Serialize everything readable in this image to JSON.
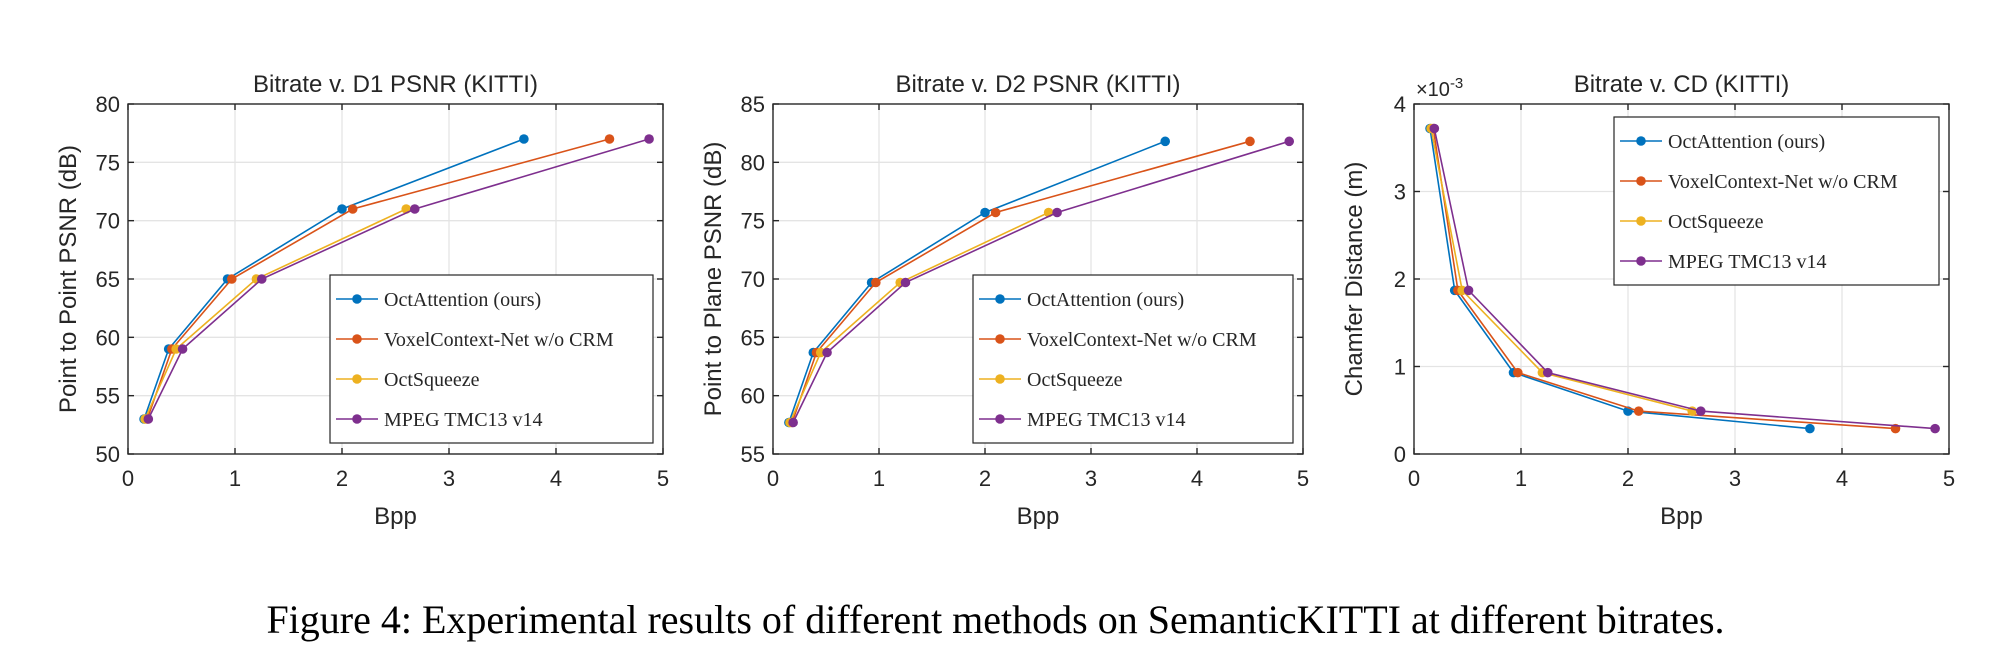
{
  "caption": "Figure 4: Experimental results of different methods on SemanticKITTI at different bitrates.",
  "series_colors": {
    "OctAttention (ours)": "#0072BD",
    "VoxelContext-Net w/o CRM": "#D95319",
    "OctSqueeze": "#EDB120",
    "MPEG TMC13 v14": "#7E2F8E"
  },
  "chart_data": [
    {
      "type": "line",
      "title": "Bitrate v. D1 PSNR (KITTI)",
      "xlabel": "Bpp",
      "ylabel": "Point to Point PSNR (dB)",
      "xlim": [
        0,
        5
      ],
      "ylim": [
        50,
        80
      ],
      "xticks": [
        "0",
        "1",
        "2",
        "3",
        "4",
        "5"
      ],
      "yticks": [
        "50",
        "55",
        "60",
        "65",
        "70",
        "75",
        "80"
      ],
      "grid": true,
      "legend_position": "bottom-right",
      "series": [
        {
          "name": "OctAttention (ours)",
          "x": [
            0.15,
            0.38,
            0.93,
            2.0,
            3.7
          ],
          "y": [
            53,
            59,
            65,
            71,
            77
          ]
        },
        {
          "name": "VoxelContext-Net w/o CRM",
          "x": [
            0.18,
            0.41,
            0.97,
            2.1,
            4.5
          ],
          "y": [
            53,
            59,
            65,
            71,
            77
          ]
        },
        {
          "name": "OctSqueeze",
          "x": [
            0.16,
            0.45,
            1.2,
            2.6
          ],
          "y": [
            53,
            59,
            65,
            71
          ]
        },
        {
          "name": "MPEG TMC13 v14",
          "x": [
            0.19,
            0.51,
            1.25,
            2.68,
            4.87
          ],
          "y": [
            53,
            59,
            65,
            71,
            77
          ]
        }
      ]
    },
    {
      "type": "line",
      "title": "Bitrate v. D2 PSNR (KITTI)",
      "xlabel": "Bpp",
      "ylabel": "Point to Plane PSNR (dB)",
      "xlim": [
        0,
        5
      ],
      "ylim": [
        55,
        85
      ],
      "xticks": [
        "0",
        "1",
        "2",
        "3",
        "4",
        "5"
      ],
      "yticks": [
        "55",
        "60",
        "65",
        "70",
        "75",
        "80",
        "85"
      ],
      "grid": true,
      "legend_position": "bottom-right",
      "series": [
        {
          "name": "OctAttention (ours)",
          "x": [
            0.15,
            0.38,
            0.93,
            2.0,
            3.7
          ],
          "y": [
            57.7,
            63.7,
            69.7,
            75.7,
            81.8
          ]
        },
        {
          "name": "VoxelContext-Net w/o CRM",
          "x": [
            0.18,
            0.41,
            0.97,
            2.1,
            4.5
          ],
          "y": [
            57.7,
            63.7,
            69.7,
            75.7,
            81.8
          ]
        },
        {
          "name": "OctSqueeze",
          "x": [
            0.16,
            0.45,
            1.2,
            2.6
          ],
          "y": [
            57.7,
            63.7,
            69.7,
            75.7
          ]
        },
        {
          "name": "MPEG TMC13 v14",
          "x": [
            0.19,
            0.51,
            1.25,
            2.68,
            4.87
          ],
          "y": [
            57.7,
            63.7,
            69.7,
            75.7,
            81.8
          ]
        }
      ]
    },
    {
      "type": "line",
      "title": "Bitrate v. CD (KITTI)",
      "xlabel": "Bpp",
      "ylabel": "Chamfer Distance (m)",
      "y_exponent_label": "×10",
      "y_exponent_power": "-3",
      "xlim": [
        0,
        5
      ],
      "ylim": [
        0,
        4
      ],
      "xticks": [
        "0",
        "1",
        "2",
        "3",
        "4",
        "5"
      ],
      "yticks": [
        "0",
        "1",
        "2",
        "3",
        "4"
      ],
      "grid": true,
      "legend_position": "top-right",
      "series": [
        {
          "name": "OctAttention (ours)",
          "x": [
            0.15,
            0.38,
            0.93,
            2.0,
            3.7
          ],
          "y": [
            3.72,
            1.87,
            0.93,
            0.49,
            0.29
          ]
        },
        {
          "name": "VoxelContext-Net w/o CRM",
          "x": [
            0.18,
            0.41,
            0.97,
            2.1,
            4.5
          ],
          "y": [
            3.72,
            1.87,
            0.93,
            0.49,
            0.29
          ]
        },
        {
          "name": "OctSqueeze",
          "x": [
            0.16,
            0.45,
            1.2,
            2.6
          ],
          "y": [
            3.72,
            1.87,
            0.93,
            0.49
          ]
        },
        {
          "name": "MPEG TMC13 v14",
          "x": [
            0.19,
            0.51,
            1.25,
            2.68,
            4.87
          ],
          "y": [
            3.72,
            1.87,
            0.93,
            0.49,
            0.29
          ]
        }
      ]
    }
  ]
}
